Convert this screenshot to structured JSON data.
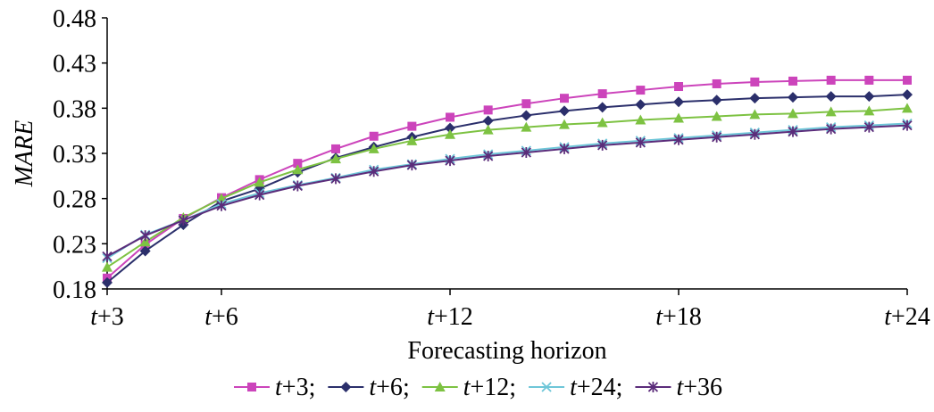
{
  "chart_data": {
    "type": "line",
    "xlabel": "Forecasting horizon",
    "ylabel": "MARE",
    "ylim": [
      0.18,
      0.48
    ],
    "yticks": [
      "0.18",
      "0.23",
      "0.28",
      "0.33",
      "0.38",
      "0.43",
      "0.48"
    ],
    "xticks": [
      {
        "step": 1,
        "prefix": "t",
        "suffix": "+3"
      },
      {
        "step": 4,
        "prefix": "t",
        "suffix": "+6"
      },
      {
        "step": 10,
        "prefix": "t",
        "suffix": "+12"
      },
      {
        "step": 16,
        "prefix": "t",
        "suffix": "+18"
      },
      {
        "step": 22,
        "prefix": "t",
        "suffix": "+24"
      }
    ],
    "x": [
      1,
      2,
      3,
      4,
      5,
      6,
      7,
      8,
      9,
      10,
      11,
      12,
      13,
      14,
      15,
      16,
      17,
      18,
      19,
      20,
      21,
      22
    ],
    "grid": false,
    "legend_position": "bottom",
    "series": [
      {
        "name_prefix": "t",
        "name_suffix": "+3",
        "sep": ";",
        "marker": "square",
        "color": "#CC44BB",
        "values": [
          0.192,
          0.229,
          0.258,
          0.281,
          0.301,
          0.319,
          0.335,
          0.349,
          0.36,
          0.37,
          0.378,
          0.385,
          0.391,
          0.396,
          0.4,
          0.404,
          0.407,
          0.409,
          0.41,
          0.411,
          0.411,
          0.411
        ]
      },
      {
        "name_prefix": "t",
        "name_suffix": "+6",
        "sep": ";",
        "marker": "diamond",
        "color": "#2B2F6B",
        "values": [
          0.187,
          0.222,
          0.251,
          0.277,
          0.291,
          0.309,
          0.325,
          0.337,
          0.348,
          0.358,
          0.366,
          0.372,
          0.377,
          0.381,
          0.384,
          0.387,
          0.389,
          0.391,
          0.392,
          0.393,
          0.393,
          0.395
        ]
      },
      {
        "name_prefix": "t",
        "name_suffix": "+12",
        "sep": ";",
        "marker": "triangle",
        "color": "#7DC242",
        "values": [
          0.204,
          0.232,
          0.259,
          0.28,
          0.298,
          0.312,
          0.324,
          0.335,
          0.344,
          0.351,
          0.356,
          0.359,
          0.362,
          0.364,
          0.367,
          0.369,
          0.371,
          0.373,
          0.374,
          0.376,
          0.377,
          0.38
        ]
      },
      {
        "name_prefix": "t",
        "name_suffix": "+24",
        "sep": ";",
        "marker": "x",
        "color": "#6EC6D8",
        "values": [
          0.214,
          0.24,
          0.256,
          0.274,
          0.286,
          0.295,
          0.303,
          0.312,
          0.318,
          0.324,
          0.329,
          0.333,
          0.337,
          0.341,
          0.344,
          0.347,
          0.35,
          0.353,
          0.356,
          0.359,
          0.361,
          0.363
        ]
      },
      {
        "name_prefix": "t",
        "name_suffix": "+36",
        "sep": "",
        "marker": "star",
        "color": "#5B2C7A",
        "values": [
          0.216,
          0.239,
          0.256,
          0.272,
          0.284,
          0.294,
          0.302,
          0.31,
          0.317,
          0.322,
          0.327,
          0.331,
          0.335,
          0.339,
          0.342,
          0.345,
          0.348,
          0.351,
          0.354,
          0.357,
          0.359,
          0.361
        ]
      }
    ]
  }
}
